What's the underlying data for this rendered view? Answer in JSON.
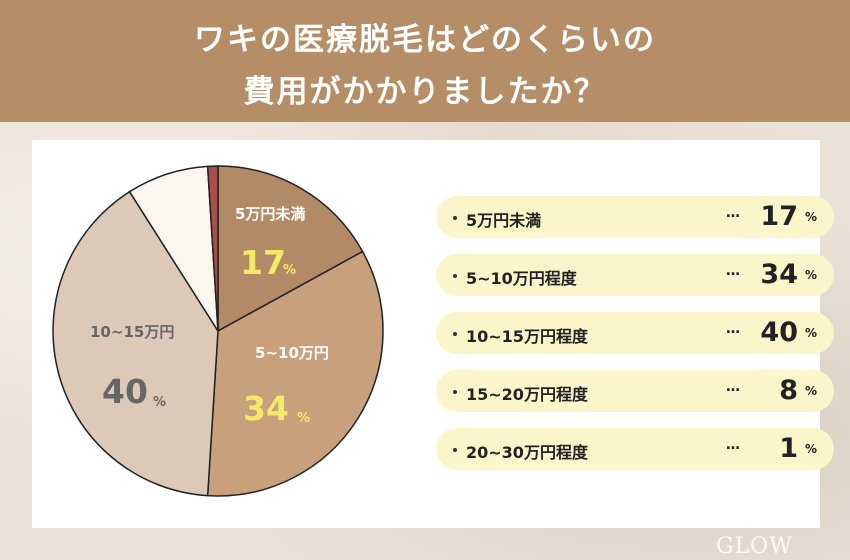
{
  "header": {
    "title_line1": "ワキの医療脱毛はどのくらいの",
    "title_line2": "費用がかかりましたか？"
  },
  "chart_data": {
    "type": "pie",
    "title": "ワキの医療脱毛はどのくらいの費用がかかりましたか？",
    "unit": "%",
    "slices": [
      {
        "label": "5万円未満",
        "value": 17,
        "color": "#b38a66",
        "labelled": true,
        "value_color": "#f4ea6a",
        "label_color": "#ffffff"
      },
      {
        "label": "5~10万円程度",
        "pie_label": "5~10万円",
        "value": 34,
        "color": "#c9a07c",
        "labelled": true,
        "value_color": "#f4ea6a",
        "label_color": "#ffffff"
      },
      {
        "label": "10~15万円程度",
        "pie_label": "10~15万円",
        "value": 40,
        "color": "#dcc9b8",
        "labelled": true,
        "value_color": "#666666",
        "label_color": "#666666"
      },
      {
        "label": "15~20万円程度",
        "value": 8,
        "color": "#fbf6ee",
        "labelled": false
      },
      {
        "label": "20~30万円程度",
        "value": 1,
        "color": "#a94f48",
        "labelled": false
      }
    ]
  },
  "list": {
    "dots": "…",
    "percent": "%"
  },
  "watermark": "GLOW"
}
